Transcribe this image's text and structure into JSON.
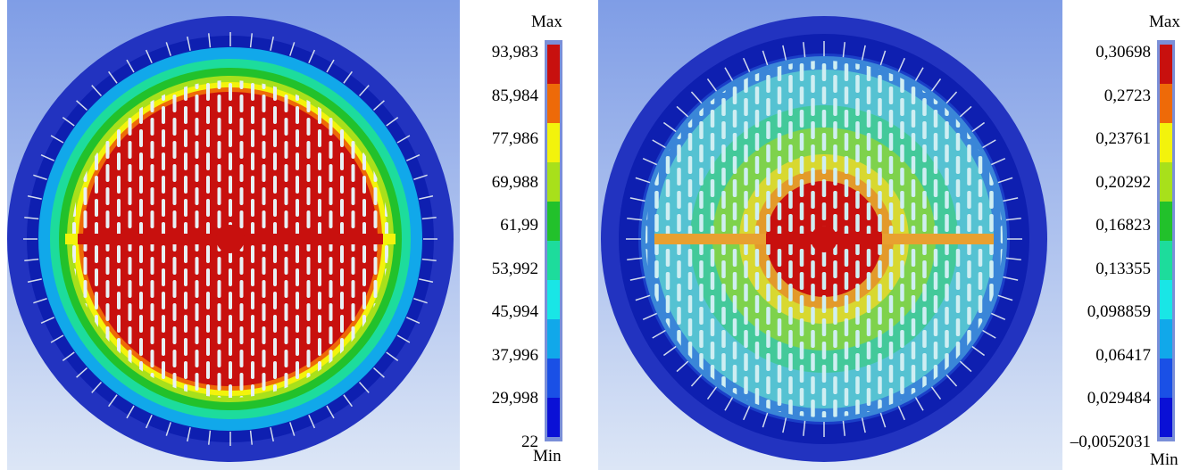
{
  "figures": [
    {
      "id": "left",
      "legend": {
        "max_label": "Max",
        "min_label": "Min",
        "values": [
          "93,983",
          "85,984",
          "77,986",
          "69,988",
          "61,99",
          "53,992",
          "45,994",
          "37,996",
          "29,998",
          "22"
        ]
      }
    },
    {
      "id": "right",
      "legend": {
        "max_label": "Max",
        "min_label": "Min",
        "values": [
          "0,30698",
          "0,2723",
          "0,23761",
          "0,20292",
          "0,16823",
          "0,13355",
          "0,098859",
          "0,06417",
          "0,029484",
          "–0,0052031"
        ]
      }
    }
  ],
  "colors": {
    "scale": [
      "#c8100e",
      "#ee6a08",
      "#f3f30c",
      "#a8e01b",
      "#22c12b",
      "#1ddc9c",
      "#19e6e6",
      "#11a8ea",
      "#1a50e6",
      "#0a10d6"
    ],
    "background_top": "#7f9de6",
    "background_bottom": "#dce6f6",
    "outer_ring": "#2c3fc8",
    "fin": "#e8f0f4"
  }
}
